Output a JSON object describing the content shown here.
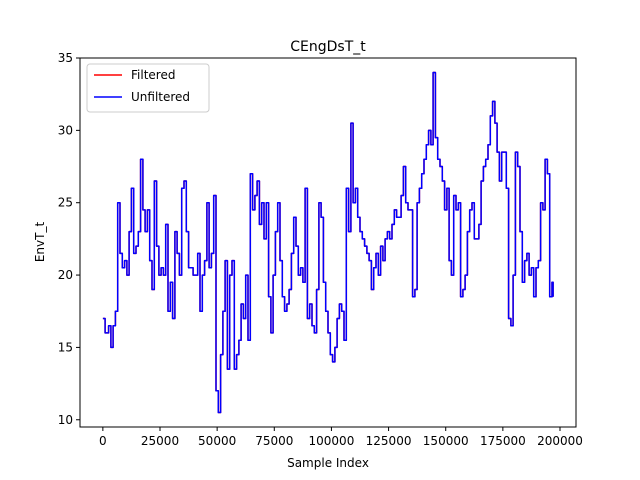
{
  "chart_data": {
    "type": "line",
    "title": "CEngDsT_t",
    "xlabel": "Sample Index",
    "ylabel": "EnvT_t",
    "xlim": [
      -10000,
      207000
    ],
    "ylim": [
      9.5,
      35
    ],
    "x_ticks": [
      0,
      25000,
      50000,
      75000,
      100000,
      125000,
      150000,
      175000,
      200000
    ],
    "y_ticks": [
      10,
      15,
      20,
      25,
      30,
      35
    ],
    "grid": false,
    "legend_position": "top-left",
    "series": [
      {
        "name": "Filtered",
        "color": "#ff0000",
        "x": [
          0,
          1000,
          2500,
          3500,
          4500,
          5500,
          6500,
          7500,
          8500,
          9500,
          10500,
          11500,
          12500,
          13500,
          14500,
          15500,
          16500,
          17500,
          18500,
          19500,
          20500,
          21500,
          22500,
          23500,
          24500,
          25500,
          26500,
          27500,
          28500,
          29500,
          30500,
          31500,
          32500,
          33500,
          34500,
          35500,
          36500,
          37500,
          38500,
          39500,
          40500,
          41500,
          42500,
          43500,
          44500,
          45500,
          46500,
          47500,
          48500,
          49500,
          50500,
          51500,
          52500,
          53500,
          54500,
          55500,
          56500,
          57500,
          58500,
          59500,
          60500,
          61500,
          62500,
          63500,
          64500,
          65500,
          66500,
          67500,
          68500,
          69500,
          70500,
          71500,
          72500,
          73500,
          74500,
          75500,
          76500,
          77500,
          78500,
          79500,
          80500,
          81500,
          82500,
          83500,
          84500,
          85500,
          86500,
          87500,
          88500,
          89500,
          90500,
          91500,
          92500,
          93500,
          94500,
          95500,
          96500,
          97500,
          98500,
          99500,
          100500,
          101500,
          102500,
          103500,
          104500,
          105500,
          106500,
          107500,
          108500,
          109500,
          110500,
          111500,
          112500,
          113500,
          114500,
          115500,
          116500,
          117500,
          118500,
          119500,
          120500,
          121500,
          122500,
          123500,
          124500,
          125500,
          126500,
          127500,
          128500,
          129500,
          130500,
          131500,
          132500,
          133500,
          134500,
          135500,
          136500,
          137500,
          138500,
          139500,
          140500,
          141500,
          142500,
          143500,
          144500,
          145500,
          146500,
          147500,
          148500,
          149500,
          150500,
          151500,
          152500,
          153500,
          154500,
          155500,
          156500,
          157500,
          158500,
          159500,
          160500,
          161500,
          162500,
          163500,
          164500,
          165500,
          166500,
          167500,
          168500,
          169500,
          170500,
          171500,
          172500,
          173500,
          174500,
          175500,
          176500,
          177500,
          178500,
          179500,
          180500,
          181500,
          182500,
          183500,
          184500,
          185500,
          186500,
          187500,
          188500,
          189500,
          190500,
          191500,
          192500,
          193500,
          194500,
          195500,
          196500,
          197000
        ],
        "y": [
          17,
          16,
          16.5,
          15,
          16.5,
          17.5,
          25,
          21.5,
          20.5,
          21,
          20,
          23,
          26,
          21.5,
          22,
          23,
          28,
          24.5,
          23,
          24.5,
          21,
          19,
          26.5,
          22,
          20,
          20.5,
          20,
          23.5,
          17.5,
          19.5,
          17,
          23,
          21.5,
          20,
          26,
          26.5,
          23,
          20.5,
          20.5,
          20,
          20,
          21.5,
          17.5,
          20,
          21,
          25,
          20.5,
          21.5,
          25.5,
          12,
          10.5,
          14.5,
          17.5,
          21,
          13.5,
          20,
          21,
          13.5,
          14.5,
          15.5,
          18,
          17,
          20,
          15.5,
          27,
          24.5,
          25.5,
          26.5,
          23.5,
          25,
          22.5,
          25,
          18.5,
          16,
          20,
          23,
          25,
          21,
          18.5,
          17.5,
          18,
          19,
          21.5,
          24,
          22,
          20,
          20.5,
          19.5,
          26,
          17,
          18,
          16.5,
          16,
          19,
          25,
          24,
          19.5,
          17.5,
          16,
          14.5,
          14,
          15,
          17,
          18,
          17.5,
          15.5,
          26,
          23,
          30.5,
          25,
          26,
          24,
          23,
          22.5,
          22,
          21.5,
          21,
          19,
          20.5,
          21.5,
          20,
          22,
          21,
          22.5,
          23,
          22.5,
          23.5,
          24.5,
          24,
          24,
          25.5,
          27.5,
          25,
          24.5,
          24.5,
          18.5,
          19,
          25,
          26,
          27,
          28,
          29,
          30,
          29,
          34,
          29.5,
          28,
          27.5,
          26.5,
          24.5,
          26,
          21,
          20,
          25.5,
          24.5,
          25,
          18.5,
          19,
          20,
          23,
          24.5,
          25,
          22.5,
          22.5,
          23.5,
          26.5,
          27.5,
          28,
          29,
          31,
          32,
          30.5,
          28.5,
          26.5,
          28.5,
          28.5,
          26,
          17,
          16.5,
          20,
          28.5,
          27.5,
          23,
          19.5,
          21,
          21.5,
          20,
          20.5,
          18.5,
          20.5,
          21,
          25,
          24.5,
          28,
          27,
          18.5,
          19.5,
          18.5
        ]
      },
      {
        "name": "Unfiltered",
        "color": "#0000ff",
        "x": [
          0,
          1000,
          2500,
          3500,
          4500,
          5500,
          6500,
          7500,
          8500,
          9500,
          10500,
          11500,
          12500,
          13500,
          14500,
          15500,
          16500,
          17500,
          18500,
          19500,
          20500,
          21500,
          22500,
          23500,
          24500,
          25500,
          26500,
          27500,
          28500,
          29500,
          30500,
          31500,
          32500,
          33500,
          34500,
          35500,
          36500,
          37500,
          38500,
          39500,
          40500,
          41500,
          42500,
          43500,
          44500,
          45500,
          46500,
          47500,
          48500,
          49500,
          50500,
          51500,
          52500,
          53500,
          54500,
          55500,
          56500,
          57500,
          58500,
          59500,
          60500,
          61500,
          62500,
          63500,
          64500,
          65500,
          66500,
          67500,
          68500,
          69500,
          70500,
          71500,
          72500,
          73500,
          74500,
          75500,
          76500,
          77500,
          78500,
          79500,
          80500,
          81500,
          82500,
          83500,
          84500,
          85500,
          86500,
          87500,
          88500,
          89500,
          90500,
          91500,
          92500,
          93500,
          94500,
          95500,
          96500,
          97500,
          98500,
          99500,
          100500,
          101500,
          102500,
          103500,
          104500,
          105500,
          106500,
          107500,
          108500,
          109500,
          110500,
          111500,
          112500,
          113500,
          114500,
          115500,
          116500,
          117500,
          118500,
          119500,
          120500,
          121500,
          122500,
          123500,
          124500,
          125500,
          126500,
          127500,
          128500,
          129500,
          130500,
          131500,
          132500,
          133500,
          134500,
          135500,
          136500,
          137500,
          138500,
          139500,
          140500,
          141500,
          142500,
          143500,
          144500,
          145500,
          146500,
          147500,
          148500,
          149500,
          150500,
          151500,
          152500,
          153500,
          154500,
          155500,
          156500,
          157500,
          158500,
          159500,
          160500,
          161500,
          162500,
          163500,
          164500,
          165500,
          166500,
          167500,
          168500,
          169500,
          170500,
          171500,
          172500,
          173500,
          174500,
          175500,
          176500,
          177500,
          178500,
          179500,
          180500,
          181500,
          182500,
          183500,
          184500,
          185500,
          186500,
          187500,
          188500,
          189500,
          190500,
          191500,
          192500,
          193500,
          194500,
          195500,
          196500,
          197000
        ],
        "y": [
          17,
          16,
          16.5,
          15,
          16.5,
          17.5,
          25,
          21.5,
          20.5,
          21,
          20,
          23,
          26,
          21.5,
          22,
          23,
          28,
          24.5,
          23,
          24.5,
          21,
          19,
          26.5,
          22,
          20,
          20.5,
          20,
          23.5,
          17.5,
          19.5,
          17,
          23,
          21.5,
          20,
          26,
          26.5,
          23,
          20.5,
          20.5,
          20,
          20,
          21.5,
          17.5,
          20,
          21,
          25,
          20.5,
          21.5,
          25.5,
          12,
          10.5,
          14.5,
          17.5,
          21,
          13.5,
          20,
          21,
          13.5,
          14.5,
          15.5,
          18,
          17,
          20,
          15.5,
          27,
          24.5,
          25.5,
          26.5,
          23.5,
          25,
          22.5,
          25,
          18.5,
          16,
          20,
          23,
          25,
          21,
          18.5,
          17.5,
          18,
          19,
          21.5,
          24,
          22,
          20,
          20.5,
          19.5,
          26,
          17,
          18,
          16.5,
          16,
          19,
          25,
          24,
          19.5,
          17.5,
          16,
          14.5,
          14,
          15,
          17,
          18,
          17.5,
          15.5,
          26,
          23,
          30.5,
          25,
          26,
          24,
          23,
          22.5,
          22,
          21.5,
          21,
          19,
          20.5,
          21.5,
          20,
          22,
          21,
          22.5,
          23,
          22.5,
          23.5,
          24.5,
          24,
          24,
          25.5,
          27.5,
          25,
          24.5,
          24.5,
          18.5,
          19,
          25,
          26,
          27,
          28,
          29,
          30,
          29,
          34,
          29.5,
          28,
          27.5,
          26.5,
          24.5,
          26,
          21,
          20,
          25.5,
          24.5,
          25,
          18.5,
          19,
          20,
          23,
          24.5,
          25,
          22.5,
          22.5,
          23.5,
          26.5,
          27.5,
          28,
          29,
          31,
          32,
          30.5,
          28.5,
          26.5,
          28.5,
          28.5,
          26,
          17,
          16.5,
          20,
          28.5,
          27.5,
          23,
          19.5,
          21,
          21.5,
          20,
          20.5,
          18.5,
          20.5,
          21,
          25,
          24.5,
          28,
          27,
          18.5,
          19.5,
          18.5
        ]
      }
    ]
  }
}
